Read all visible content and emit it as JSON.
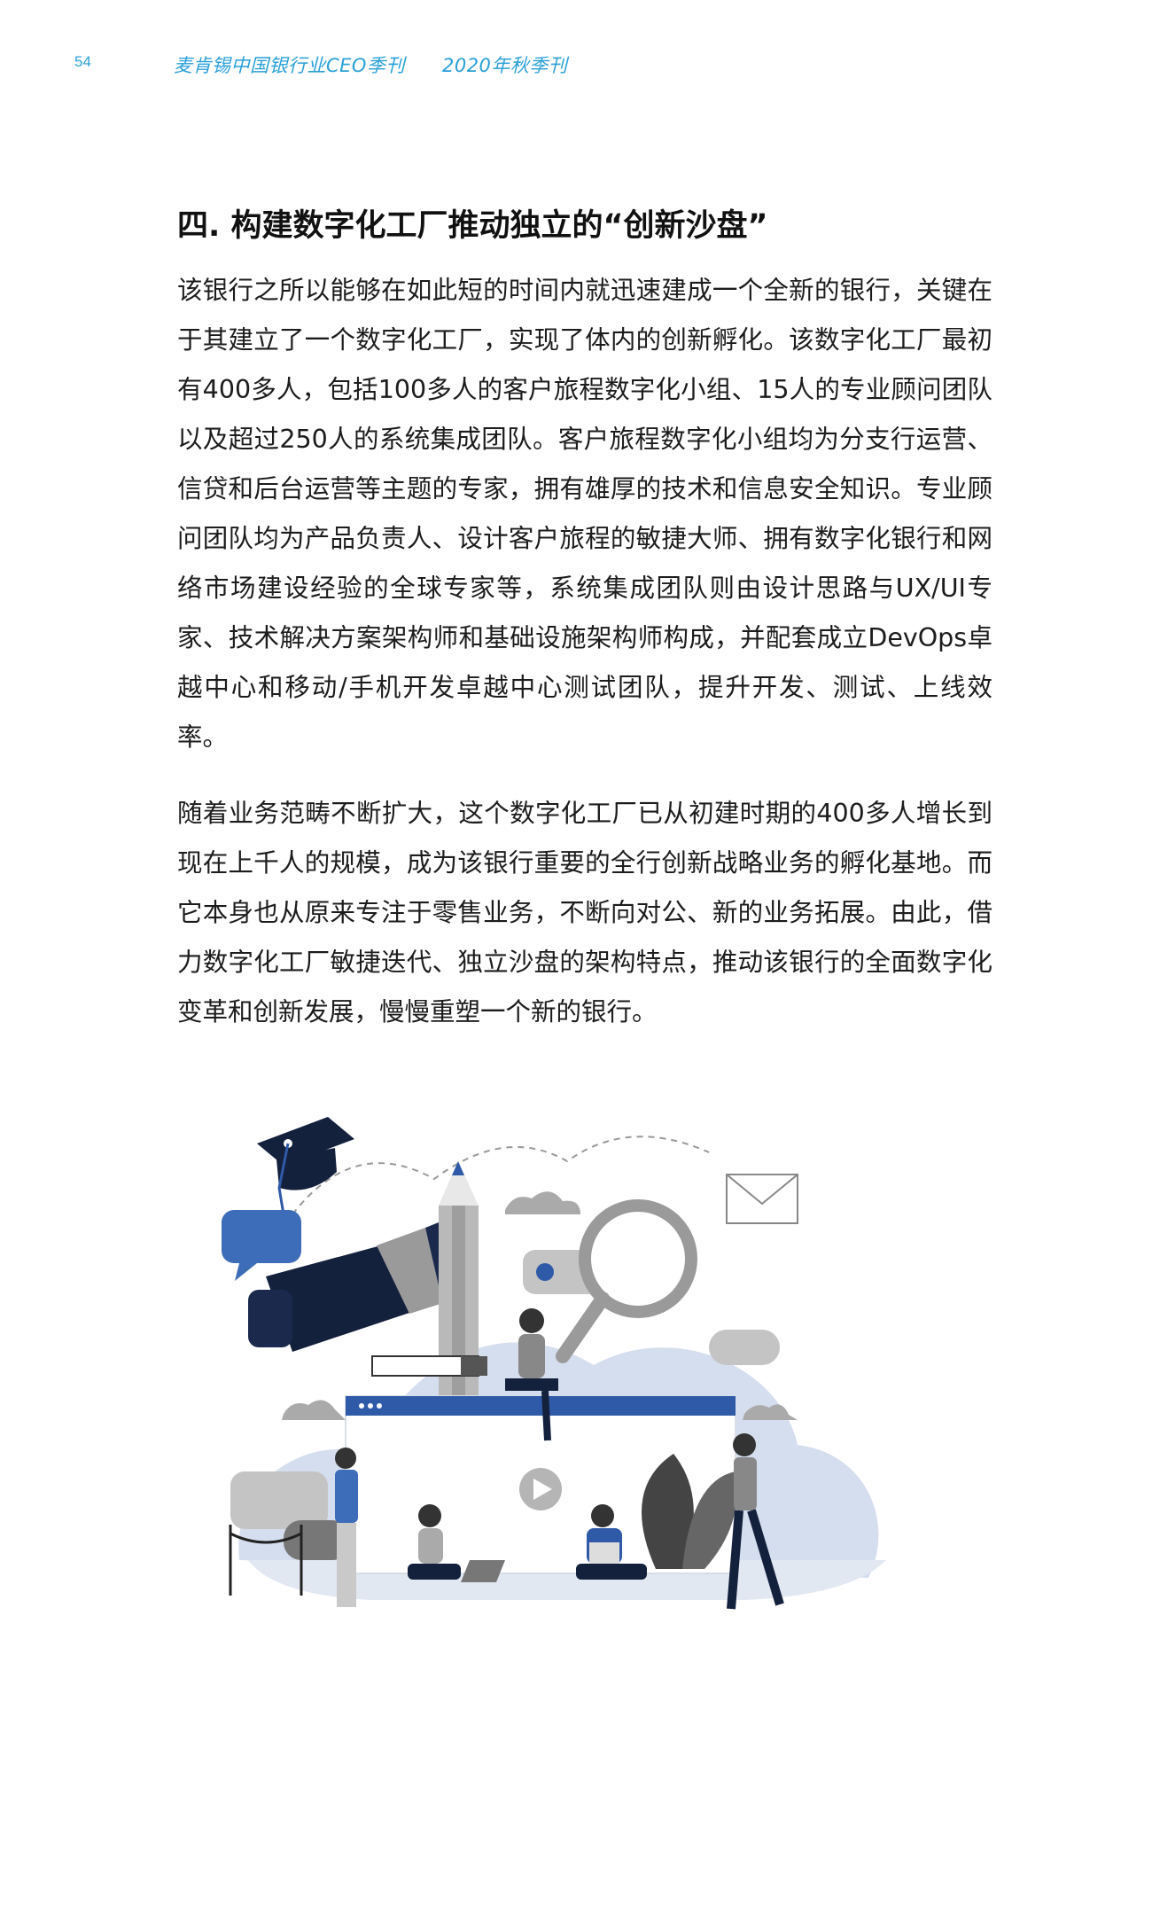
{
  "page_number": "54",
  "header": {
    "publication": "麦肯锡中国银行业CEO季刊",
    "issue": "2020年秋季刊"
  },
  "section": {
    "title": "四. 构建数字化工厂推动独立的“创新沙盘”",
    "paragraphs": [
      "该银行之所以能够在如此短的时间内就迅速建成一个全新的银行，关键在于其建立了一个数字化工厂，实现了体内的创新孵化。该数字化工厂最初有400多人，包括100多人的客户旅程数字化小组、15人的专业顾问团队以及超过250人的系统集成团队。客户旅程数字化小组均为分支行运营、信贷和后台运营等主题的专家，拥有雄厚的技术和信息安全知识。专业顾问团队均为产品负责人、设计客户旅程的敏捷大师、拥有数字化银行和网络市场建设经验的全球专家等，系统集成团队则由设计思路与UX/UI专家、技术解决方案架构师和基础设施架构师构成，并配套成立DevOps卓越中心和移动/手机开发卓越中心测试团队，提升开发、测试、上线效率。",
      "随着业务范畴不断扩大，这个数字化工厂已从初建时期的400多人增长到现在上千人的规模，成为该银行重要的全行创新战略业务的孵化基地。而它本身也从原来专注于零售业务，不断向对公、新的业务拓展。由此，借力数字化工厂敏捷迭代、独立沙盘的架构特点，推动该银行的全面数字化变革和创新发展，慢慢重塑一个新的银行。"
    ]
  },
  "colors": {
    "accent": "#2aa0d8",
    "navy": "#14213d",
    "blue": "#2f5aa8",
    "light_blue": "#d5deee",
    "gray": "#9a9a9a"
  }
}
